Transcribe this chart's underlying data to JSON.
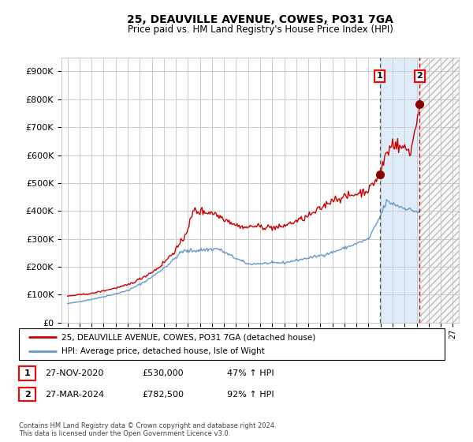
{
  "title": "25, DEAUVILLE AVENUE, COWES, PO31 7GA",
  "subtitle": "Price paid vs. HM Land Registry's House Price Index (HPI)",
  "legend_line1": "25, DEAUVILLE AVENUE, COWES, PO31 7GA (detached house)",
  "legend_line2": "HPI: Average price, detached house, Isle of Wight",
  "footnote": "Contains HM Land Registry data © Crown copyright and database right 2024.\nThis data is licensed under the Open Government Licence v3.0.",
  "sale1_label": "1",
  "sale1_date": "27-NOV-2020",
  "sale1_price": "£530,000",
  "sale1_hpi": "47% ↑ HPI",
  "sale2_label": "2",
  "sale2_date": "27-MAR-2024",
  "sale2_price": "£782,500",
  "sale2_hpi": "92% ↑ HPI",
  "sale1_year": 2020.92,
  "sale1_value": 530000,
  "sale2_year": 2024.25,
  "sale2_value": 782500,
  "hpi_color": "#6699cc",
  "price_color": "#cc0000",
  "background_color": "#ffffff",
  "grid_color": "#cccccc",
  "ylim": [
    0,
    950000
  ],
  "xlim_start": 1994.5,
  "xlim_end": 2027.5
}
